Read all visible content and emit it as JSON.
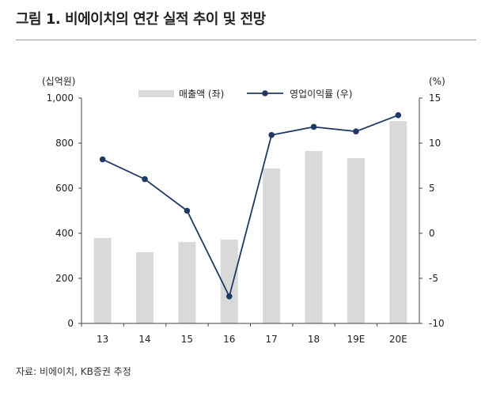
{
  "title": "그림 1. 비에이치의 연간 실적 추이 및 전망",
  "source": "자료: 비에이치, KB증권 추정",
  "chart_data": {
    "type": "bar+line",
    "categories": [
      "13",
      "14",
      "15",
      "16",
      "17",
      "18",
      "19E",
      "20E"
    ],
    "series": [
      {
        "name": "매출액 (좌)",
        "type": "bar",
        "axis": "left",
        "color": "#d9d9d9",
        "values": [
          379,
          316,
          361,
          372,
          688,
          765,
          733,
          898
        ]
      },
      {
        "name": "영업이익률 (우)",
        "type": "line",
        "axis": "right",
        "color": "#1f3864",
        "values": [
          8.2,
          6.0,
          2.5,
          -7.0,
          10.9,
          11.8,
          11.3,
          13.1
        ]
      }
    ],
    "left_unit": "(십억원)",
    "right_unit": "(%)",
    "left_ylim": [
      0,
      1000
    ],
    "right_ylim": [
      -10,
      15
    ],
    "left_ticks": [
      "0",
      "200",
      "400",
      "600",
      "800",
      "1,000"
    ],
    "right_ticks": [
      "-10",
      "-5",
      "0",
      "5",
      "10",
      "15"
    ],
    "legend_position": "top-center"
  }
}
